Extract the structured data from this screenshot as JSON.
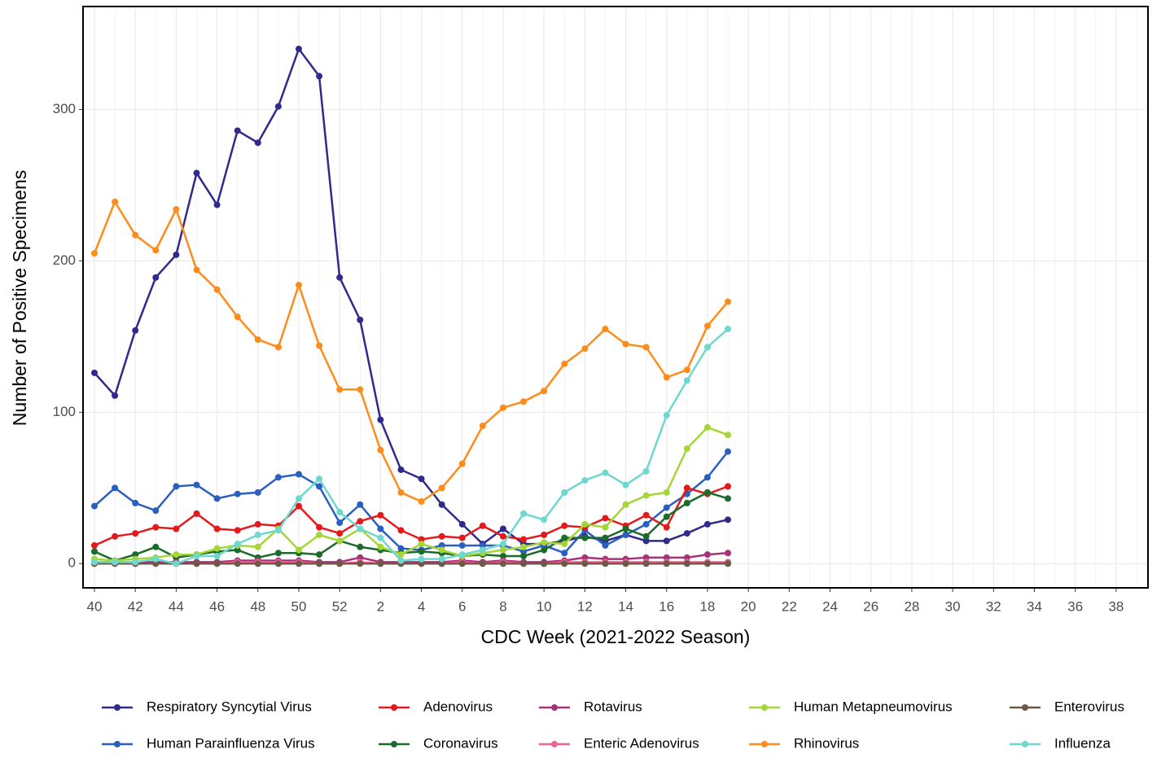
{
  "chart_data": {
    "type": "line",
    "x_label": "CDC Week (2021-2022 Season)",
    "y_label": "Number of Positive Specimens",
    "categories": [
      "40",
      null,
      "42",
      null,
      "44",
      null,
      "46",
      null,
      "48",
      null,
      "50",
      null,
      "52",
      null,
      "2",
      null,
      "4",
      null,
      "6",
      null,
      "8",
      null,
      "10",
      null,
      "12",
      null,
      "14",
      null,
      "16",
      null,
      "18",
      null,
      "20",
      null,
      "22",
      null,
      "24",
      null,
      "26",
      null,
      "28",
      null,
      "30",
      null,
      "32",
      null,
      "34",
      null,
      "36",
      null,
      "38",
      null
    ],
    "ylim": [
      -16,
      368
    ],
    "yticks": [
      0,
      100,
      200,
      300
    ],
    "grid": true,
    "legend": "bottom",
    "series": [
      {
        "name": "Respiratory Syncytial Virus",
        "color": "#2f2a8c",
        "values": [
          126,
          111,
          154,
          189,
          204,
          258,
          237,
          286,
          278,
          302,
          340,
          322,
          189,
          161,
          95,
          62,
          56,
          39,
          26,
          13,
          23,
          13,
          13,
          15,
          18,
          15,
          19,
          15,
          15,
          20,
          26,
          29,
          null,
          null,
          null,
          null,
          null,
          null,
          null,
          null,
          null,
          null,
          null,
          null,
          null,
          null,
          null,
          null,
          null,
          null,
          null,
          null
        ]
      },
      {
        "name": "Human Parainfluenza Virus",
        "color": "#2a5fbf",
        "values": [
          38,
          50,
          40,
          35,
          51,
          52,
          43,
          46,
          47,
          57,
          59,
          51,
          27,
          39,
          23,
          10,
          9,
          12,
          12,
          12,
          12,
          8,
          12,
          7,
          22,
          12,
          19,
          26,
          37,
          46,
          57,
          74,
          null,
          null,
          null,
          null,
          null,
          null,
          null,
          null,
          null,
          null,
          null,
          null,
          null,
          null,
          null,
          null,
          null,
          null,
          null,
          null
        ]
      },
      {
        "name": "Adenovirus",
        "color": "#e3191c",
        "values": [
          12,
          18,
          20,
          24,
          23,
          33,
          23,
          22,
          26,
          25,
          38,
          24,
          20,
          28,
          32,
          22,
          16,
          18,
          17,
          25,
          18,
          16,
          19,
          25,
          24,
          30,
          25,
          32,
          24,
          50,
          46,
          51,
          null,
          null,
          null,
          null,
          null,
          null,
          null,
          null,
          null,
          null,
          null,
          null,
          null,
          null,
          null,
          null,
          null,
          null,
          null,
          null
        ]
      },
      {
        "name": "Coronavirus",
        "color": "#1b6b2b",
        "values": [
          8,
          2,
          6,
          11,
          4,
          6,
          8,
          9,
          4,
          7,
          7,
          6,
          15,
          11,
          9,
          7,
          8,
          7,
          5,
          6,
          5,
          5,
          9,
          17,
          17,
          17,
          23,
          18,
          31,
          40,
          47,
          43,
          null,
          null,
          null,
          null,
          null,
          null,
          null,
          null,
          null,
          null,
          null,
          null,
          null,
          null,
          null,
          null,
          null,
          null,
          null,
          null
        ]
      },
      {
        "name": "Rotavirus",
        "color": "#a8327a",
        "values": [
          1,
          1,
          1,
          1,
          1,
          1,
          1,
          2,
          2,
          2,
          2,
          1,
          1,
          4,
          1,
          1,
          1,
          1,
          2,
          1,
          2,
          1,
          1,
          2,
          4,
          3,
          3,
          4,
          4,
          4,
          6,
          7,
          null,
          null,
          null,
          null,
          null,
          null,
          null,
          null,
          null,
          null,
          null,
          null,
          null,
          null,
          null,
          null,
          null,
          null,
          null,
          null
        ]
      },
      {
        "name": "Enteric Adenovirus",
        "color": "#f06292",
        "values": [
          0,
          0,
          0,
          0,
          0,
          0,
          0,
          1,
          1,
          1,
          1,
          0,
          0,
          1,
          0,
          0,
          0,
          0,
          1,
          0,
          1,
          0,
          0,
          1,
          1,
          1,
          1,
          1,
          1,
          1,
          1,
          1,
          null,
          null,
          null,
          null,
          null,
          null,
          null,
          null,
          null,
          null,
          null,
          null,
          null,
          null,
          null,
          null,
          null,
          null,
          null,
          null
        ]
      },
      {
        "name": "Human Metapneumovirus",
        "color": "#a4d637",
        "values": [
          3,
          2,
          3,
          4,
          6,
          6,
          10,
          12,
          11,
          23,
          9,
          19,
          15,
          23,
          11,
          6,
          13,
          9,
          5,
          7,
          9,
          11,
          14,
          13,
          26,
          24,
          39,
          45,
          47,
          76,
          90,
          85,
          null,
          null,
          null,
          null,
          null,
          null,
          null,
          null,
          null,
          null,
          null,
          null,
          null,
          null,
          null,
          null,
          null,
          null,
          null,
          null
        ]
      },
      {
        "name": "Rhinovirus",
        "color": "#ff8c1a",
        "values": [
          205,
          239,
          217,
          207,
          234,
          194,
          181,
          163,
          148,
          143,
          184,
          144,
          115,
          115,
          75,
          47,
          41,
          50,
          66,
          91,
          103,
          107,
          114,
          132,
          142,
          155,
          145,
          143,
          123,
          128,
          157,
          173,
          null,
          null,
          null,
          null,
          null,
          null,
          null,
          null,
          null,
          null,
          null,
          null,
          null,
          null,
          null,
          null,
          null,
          null,
          null,
          null
        ]
      },
      {
        "name": "Enterovirus",
        "color": "#6b5a45",
        "values": [
          0,
          0,
          0,
          0,
          0,
          0,
          0,
          0,
          0,
          0,
          0,
          0,
          0,
          0,
          0,
          0,
          0,
          0,
          0,
          0,
          0,
          0,
          0,
          0,
          0,
          0,
          0,
          0,
          0,
          0,
          0,
          0,
          null,
          null,
          null,
          null,
          null,
          null,
          null,
          null,
          null,
          null,
          null,
          null,
          null,
          null,
          null,
          null,
          null,
          null,
          null,
          null
        ]
      },
      {
        "name": "Influenza",
        "color": "#6dd8d0",
        "values": [
          1,
          1,
          1,
          3,
          0,
          5,
          5,
          13,
          19,
          22,
          43,
          56,
          34,
          23,
          17,
          2,
          3,
          3,
          6,
          9,
          13,
          33,
          29,
          47,
          55,
          60,
          52,
          61,
          98,
          121,
          143,
          155,
          null,
          null,
          null,
          null,
          null,
          null,
          null,
          null,
          null,
          null,
          null,
          null,
          null,
          null,
          null,
          null,
          null,
          null,
          null,
          null
        ]
      }
    ]
  }
}
